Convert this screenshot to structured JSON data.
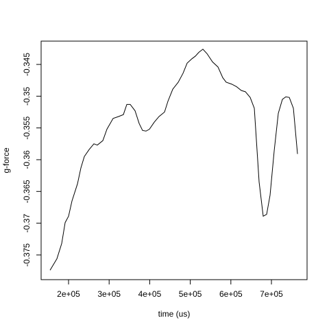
{
  "chart_data": {
    "type": "line",
    "xlabel": "time (us)",
    "ylabel": "g-force",
    "x": [
      154400,
      171300,
      183100,
      191600,
      200000,
      208400,
      222000,
      230400,
      238900,
      250700,
      262500,
      270900,
      284500,
      294600,
      309800,
      323300,
      335100,
      343600,
      352000,
      363900,
      374000,
      382400,
      390900,
      399300,
      411100,
      423000,
      436500,
      444900,
      456800,
      470300,
      482100,
      492200,
      504100,
      512500,
      521000,
      531100,
      541200,
      554700,
      568200,
      580100,
      588500,
      602000,
      613900,
      625700,
      635800,
      647600,
      657800,
      669600,
      679700,
      688200,
      696600,
      706800,
      716900,
      727000,
      735500,
      744000,
      754100,
      764200
    ],
    "series": [
      {
        "color": "#000000",
        "values": [
          -0.3774,
          -0.3756,
          -0.3732,
          -0.3699,
          -0.3689,
          -0.3665,
          -0.3638,
          -0.3613,
          -0.3595,
          -0.3584,
          -0.3575,
          -0.3577,
          -0.357,
          -0.3552,
          -0.3535,
          -0.3532,
          -0.3529,
          -0.3513,
          -0.3513,
          -0.3523,
          -0.3543,
          -0.3554,
          -0.3555,
          -0.3552,
          -0.3541,
          -0.3532,
          -0.3525,
          -0.3508,
          -0.3489,
          -0.3478,
          -0.3464,
          -0.3448,
          -0.3441,
          -0.3437,
          -0.3431,
          -0.3426,
          -0.3433,
          -0.3446,
          -0.3454,
          -0.3471,
          -0.3478,
          -0.3481,
          -0.3485,
          -0.3491,
          -0.3493,
          -0.3502,
          -0.3519,
          -0.3635,
          -0.3689,
          -0.3686,
          -0.3656,
          -0.3586,
          -0.3527,
          -0.3505,
          -0.3501,
          -0.3502,
          -0.3519,
          -0.3591
        ]
      }
    ],
    "xlim": [
      132400,
      787800
    ],
    "ylim": [
      -0.37889,
      -0.34133
    ],
    "xticks": [
      {
        "value": 200000,
        "label": "2e+05"
      },
      {
        "value": 300000,
        "label": "3e+05"
      },
      {
        "value": 400000,
        "label": "4e+05"
      },
      {
        "value": 500000,
        "label": "5e+05"
      },
      {
        "value": 600000,
        "label": "6e+05"
      },
      {
        "value": 700000,
        "label": "7e+05"
      }
    ],
    "yticks": [
      -0.375,
      -0.37,
      -0.365,
      -0.36,
      -0.355,
      -0.35,
      -0.345
    ]
  }
}
